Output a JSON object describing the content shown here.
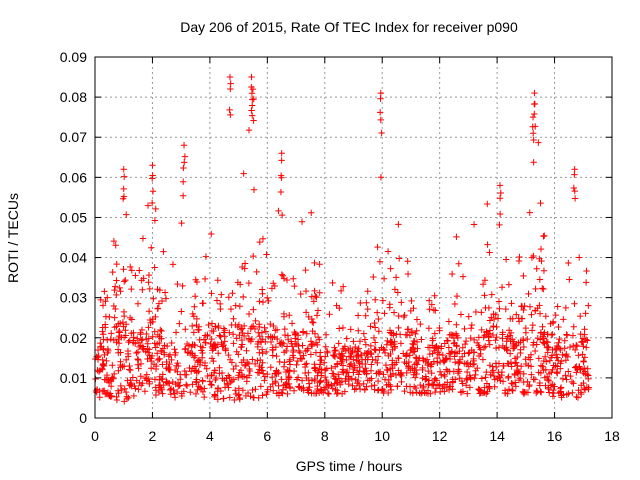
{
  "chart_data": {
    "type": "scatter",
    "title": "Day 206 of 2015, Rate Of TEC Index for receiver p090",
    "xlabel": "GPS time / hours",
    "ylabel": "ROTI / TECUs",
    "xlim": [
      0,
      18
    ],
    "ylim": [
      0,
      0.09
    ],
    "xticks": [
      "0",
      "2",
      "4",
      "6",
      "8",
      "10",
      "12",
      "14",
      "16",
      "18"
    ],
    "yticks": [
      "0",
      "0.01",
      "0.02",
      "0.03",
      "0.04",
      "0.05",
      "0.06",
      "0.07",
      "0.08",
      "0.09"
    ],
    "grid": true,
    "marker": "+",
    "color": "#ff0000",
    "series": [
      {
        "name": "ROTI",
        "note": "Dense red '+' markers; values sampled from envelope read off the figure",
        "envelope": {
          "x": [
            0.0,
            0.2,
            0.4,
            0.6,
            0.8,
            1.0,
            1.2,
            1.4,
            1.6,
            1.8,
            2.0,
            2.2,
            2.4,
            2.6,
            2.8,
            3.0,
            3.2,
            3.4,
            3.6,
            3.8,
            4.0,
            4.2,
            4.4,
            4.6,
            4.8,
            5.0,
            5.2,
            5.4,
            5.6,
            5.8,
            6.0,
            6.2,
            6.4,
            6.6,
            6.8,
            7.0,
            7.2,
            7.4,
            7.6,
            7.8,
            8.0,
            8.2,
            8.4,
            8.6,
            8.8,
            9.0,
            9.2,
            9.4,
            9.6,
            9.8,
            10.0,
            10.2,
            10.4,
            10.6,
            10.8,
            11.0,
            11.2,
            11.4,
            11.6,
            11.8,
            12.0,
            12.2,
            12.4,
            12.6,
            12.8,
            13.0,
            13.2,
            13.4,
            13.6,
            13.8,
            14.0,
            14.2,
            14.4,
            14.6,
            14.8,
            15.0,
            15.2,
            15.4,
            15.6,
            15.8,
            16.0,
            16.2,
            16.4,
            16.6,
            16.8,
            17.0,
            17.2
          ],
          "upper": [
            0.021,
            0.031,
            0.035,
            0.042,
            0.058,
            0.062,
            0.04,
            0.038,
            0.046,
            0.052,
            0.063,
            0.045,
            0.044,
            0.035,
            0.052,
            0.067,
            0.04,
            0.035,
            0.038,
            0.04,
            0.048,
            0.043,
            0.038,
            0.048,
            0.085,
            0.05,
            0.065,
            0.085,
            0.055,
            0.046,
            0.045,
            0.052,
            0.066,
            0.05,
            0.055,
            0.048,
            0.05,
            0.056,
            0.055,
            0.04,
            0.035,
            0.038,
            0.032,
            0.034,
            0.032,
            0.028,
            0.032,
            0.03,
            0.035,
            0.05,
            0.081,
            0.045,
            0.052,
            0.048,
            0.05,
            0.044,
            0.04,
            0.037,
            0.035,
            0.033,
            0.032,
            0.035,
            0.038,
            0.047,
            0.04,
            0.036,
            0.052,
            0.038,
            0.055,
            0.05,
            0.058,
            0.049,
            0.037,
            0.034,
            0.045,
            0.046,
            0.076,
            0.081,
            0.05,
            0.04,
            0.046,
            0.038,
            0.048,
            0.055,
            0.062,
            0.035,
            0.045
          ],
          "lower": [
            0.005,
            0.005,
            0.006,
            0.005,
            0.004,
            0.004,
            0.005,
            0.005,
            0.006,
            0.006,
            0.005,
            0.006,
            0.006,
            0.006,
            0.005,
            0.005,
            0.006,
            0.006,
            0.005,
            0.005,
            0.005,
            0.005,
            0.004,
            0.005,
            0.004,
            0.004,
            0.005,
            0.005,
            0.005,
            0.005,
            0.006,
            0.006,
            0.005,
            0.006,
            0.006,
            0.006,
            0.006,
            0.006,
            0.006,
            0.006,
            0.006,
            0.006,
            0.006,
            0.006,
            0.006,
            0.007,
            0.007,
            0.007,
            0.007,
            0.007,
            0.006,
            0.006,
            0.007,
            0.007,
            0.006,
            0.006,
            0.006,
            0.006,
            0.006,
            0.006,
            0.006,
            0.006,
            0.006,
            0.006,
            0.006,
            0.006,
            0.006,
            0.006,
            0.006,
            0.006,
            0.006,
            0.006,
            0.006,
            0.006,
            0.006,
            0.006,
            0.006,
            0.006,
            0.006,
            0.006,
            0.005,
            0.005,
            0.005,
            0.005,
            0.005,
            0.006,
            0.006
          ],
          "typical": [
            0.012,
            0.013,
            0.015,
            0.017,
            0.018,
            0.02,
            0.016,
            0.015,
            0.016,
            0.018,
            0.02,
            0.017,
            0.016,
            0.015,
            0.017,
            0.02,
            0.015,
            0.014,
            0.014,
            0.016,
            0.017,
            0.017,
            0.016,
            0.017,
            0.02,
            0.017,
            0.018,
            0.02,
            0.018,
            0.017,
            0.017,
            0.017,
            0.018,
            0.017,
            0.017,
            0.016,
            0.016,
            0.017,
            0.016,
            0.015,
            0.014,
            0.014,
            0.013,
            0.013,
            0.013,
            0.013,
            0.013,
            0.013,
            0.014,
            0.015,
            0.018,
            0.016,
            0.016,
            0.016,
            0.016,
            0.015,
            0.015,
            0.014,
            0.014,
            0.014,
            0.013,
            0.014,
            0.015,
            0.016,
            0.015,
            0.014,
            0.016,
            0.015,
            0.016,
            0.016,
            0.017,
            0.016,
            0.015,
            0.014,
            0.015,
            0.016,
            0.02,
            0.021,
            0.017,
            0.015,
            0.016,
            0.015,
            0.016,
            0.017,
            0.018,
            0.014,
            0.015
          ]
        },
        "notable_points": [
          {
            "x": 3.1,
            "y": 0.068
          },
          {
            "x": 4.7,
            "y": 0.085
          },
          {
            "x": 5.45,
            "y": 0.085
          },
          {
            "x": 5.5,
            "y": 0.082
          },
          {
            "x": 6.5,
            "y": 0.066
          },
          {
            "x": 9.95,
            "y": 0.081
          },
          {
            "x": 15.3,
            "y": 0.081
          },
          {
            "x": 15.25,
            "y": 0.075
          },
          {
            "x": 16.7,
            "y": 0.062
          },
          {
            "x": 1.0,
            "y": 0.062
          },
          {
            "x": 2.0,
            "y": 0.063
          },
          {
            "x": 14.1,
            "y": 0.058
          }
        ]
      }
    ]
  }
}
